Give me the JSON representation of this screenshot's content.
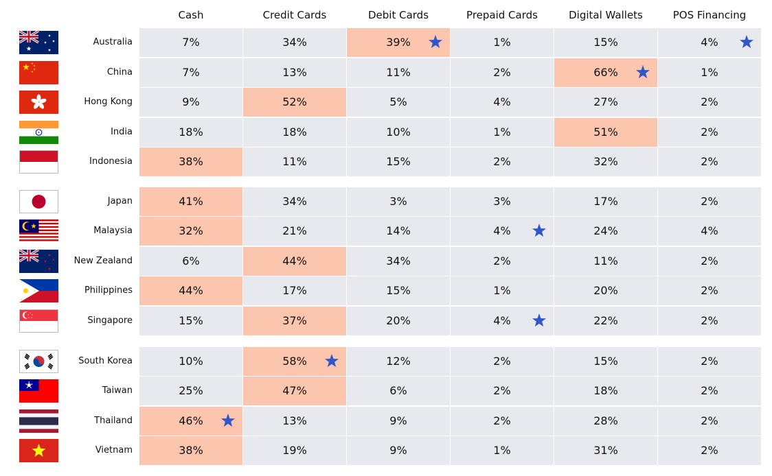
{
  "chart_data": {
    "type": "table",
    "columns": [
      "Cash",
      "Credit Cards",
      "Debit Cards",
      "Prepaid Cards",
      "Digital Wallets",
      "POS Financing"
    ],
    "groups": [
      [
        "Australia",
        "China",
        "Hong Kong",
        "India",
        "Indonesia"
      ],
      [
        "Japan",
        "Malaysia",
        "New Zealand",
        "Philippines",
        "Singapore"
      ],
      [
        "South Korea",
        "Taiwan",
        "Thailand",
        "Vietnam"
      ]
    ],
    "rows": [
      {
        "country": "Australia",
        "flag": "australia-flag-icon",
        "values": [
          "7%",
          "34%",
          "39%",
          "1%",
          "15%",
          "4%"
        ],
        "highlight": [
          2
        ],
        "star": [
          2,
          5
        ]
      },
      {
        "country": "China",
        "flag": "china-flag-icon",
        "values": [
          "7%",
          "13%",
          "11%",
          "2%",
          "66%",
          "1%"
        ],
        "highlight": [
          4
        ],
        "star": [
          4
        ]
      },
      {
        "country": "Hong Kong",
        "flag": "hong-kong-flag-icon",
        "values": [
          "9%",
          "52%",
          "5%",
          "4%",
          "27%",
          "2%"
        ],
        "highlight": [
          1
        ],
        "star": []
      },
      {
        "country": "India",
        "flag": "india-flag-icon",
        "values": [
          "18%",
          "18%",
          "10%",
          "1%",
          "51%",
          "2%"
        ],
        "highlight": [
          4
        ],
        "star": []
      },
      {
        "country": "Indonesia",
        "flag": "indonesia-flag-icon",
        "values": [
          "38%",
          "11%",
          "15%",
          "2%",
          "32%",
          "2%"
        ],
        "highlight": [
          0
        ],
        "star": []
      },
      {
        "country": "Japan",
        "flag": "japan-flag-icon",
        "values": [
          "41%",
          "34%",
          "3%",
          "3%",
          "17%",
          "2%"
        ],
        "highlight": [
          0
        ],
        "star": []
      },
      {
        "country": "Malaysia",
        "flag": "malaysia-flag-icon",
        "values": [
          "32%",
          "21%",
          "14%",
          "4%",
          "24%",
          "4%"
        ],
        "highlight": [
          0
        ],
        "star": [
          3
        ]
      },
      {
        "country": "New Zealand",
        "flag": "new-zealand-flag-icon",
        "values": [
          "6%",
          "44%",
          "34%",
          "2%",
          "11%",
          "2%"
        ],
        "highlight": [
          1
        ],
        "star": []
      },
      {
        "country": "Philippines",
        "flag": "philippines-flag-icon",
        "values": [
          "44%",
          "17%",
          "15%",
          "1%",
          "20%",
          "2%"
        ],
        "highlight": [
          0
        ],
        "star": []
      },
      {
        "country": "Singapore",
        "flag": "singapore-flag-icon",
        "values": [
          "15%",
          "37%",
          "20%",
          "4%",
          "22%",
          "2%"
        ],
        "highlight": [
          1
        ],
        "star": [
          3
        ]
      },
      {
        "country": "South Korea",
        "flag": "south-korea-flag-icon",
        "values": [
          "10%",
          "58%",
          "12%",
          "2%",
          "15%",
          "2%"
        ],
        "highlight": [
          1
        ],
        "star": [
          1
        ]
      },
      {
        "country": "Taiwan",
        "flag": "taiwan-flag-icon",
        "values": [
          "25%",
          "47%",
          "6%",
          "2%",
          "18%",
          "2%"
        ],
        "highlight": [
          1
        ],
        "star": []
      },
      {
        "country": "Thailand",
        "flag": "thailand-flag-icon",
        "values": [
          "46%",
          "13%",
          "9%",
          "2%",
          "28%",
          "2%"
        ],
        "highlight": [
          0
        ],
        "star": [
          0
        ]
      },
      {
        "country": "Vietnam",
        "flag": "vietnam-flag-icon",
        "values": [
          "38%",
          "19%",
          "9%",
          "1%",
          "31%",
          "2%"
        ],
        "highlight": [
          0
        ],
        "star": []
      }
    ],
    "colors": {
      "cell": "#e8e9ef",
      "highlight": "#fcc5ad",
      "star": "#2f57c9"
    },
    "star_icon": "star-icon"
  }
}
